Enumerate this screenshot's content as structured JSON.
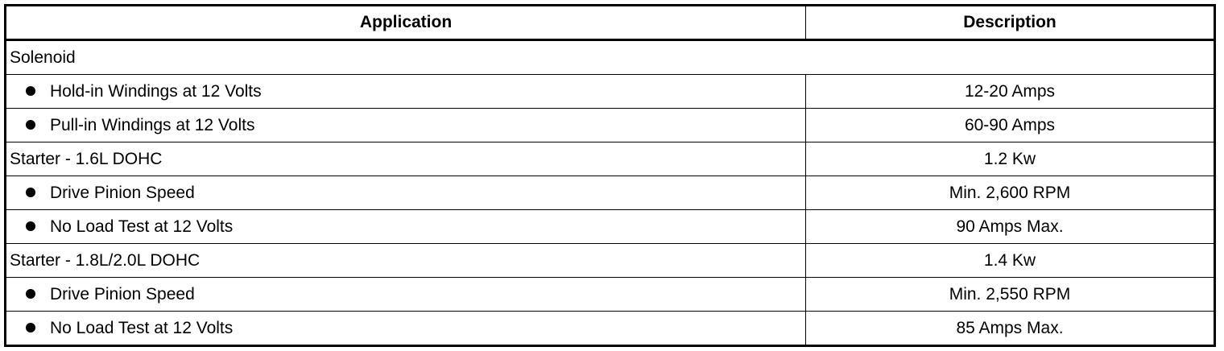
{
  "table": {
    "headers": [
      "Application",
      "Description"
    ],
    "rows": [
      {
        "application": "Solenoid",
        "description": "",
        "bullet": false,
        "span": true
      },
      {
        "application": "Hold-in Windings at 12 Volts",
        "description": "12-20 Amps",
        "bullet": true
      },
      {
        "application": "Pull-in Windings at 12 Volts",
        "description": "60-90 Amps",
        "bullet": true
      },
      {
        "application": "Starter - 1.6L DOHC",
        "description": "1.2 Kw",
        "bullet": false
      },
      {
        "application": "Drive Pinion Speed",
        "description": "Min. 2,600 RPM",
        "bullet": true
      },
      {
        "application": "No Load Test at 12 Volts",
        "description": "90 Amps Max.",
        "bullet": true
      },
      {
        "application": "Starter - 1.8L/2.0L DOHC",
        "description": "1.4 Kw",
        "bullet": false
      },
      {
        "application": "Drive Pinion Speed",
        "description": "Min. 2,550 RPM",
        "bullet": true
      },
      {
        "application": "No Load Test at 12 Volts",
        "description": "85 Amps Max.",
        "bullet": true
      }
    ]
  }
}
